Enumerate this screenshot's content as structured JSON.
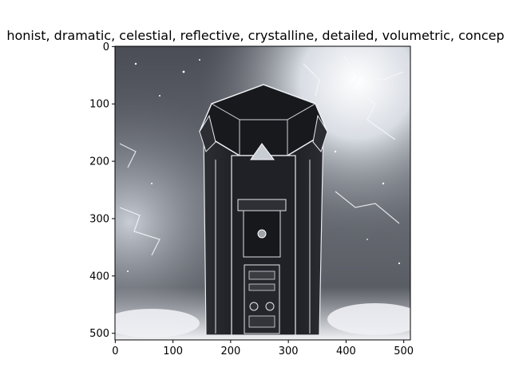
{
  "figure": {
    "title": "honist,  dramatic, celestial, reflective, crystalline, detailed, volumetric, concep",
    "image_icon": "crystalline-obelisk-machine-image",
    "image_size": [
      512,
      512
    ],
    "x_ticks": [
      0,
      100,
      200,
      300,
      400,
      500
    ],
    "y_ticks": [
      0,
      100,
      200,
      300,
      400,
      500
    ],
    "colors": {
      "sky_dark": "#3a3d44",
      "sky_light": "#e8ecf2",
      "obelisk_body": "#1c1d22",
      "edge_highlight": "#f2f4f8"
    }
  }
}
